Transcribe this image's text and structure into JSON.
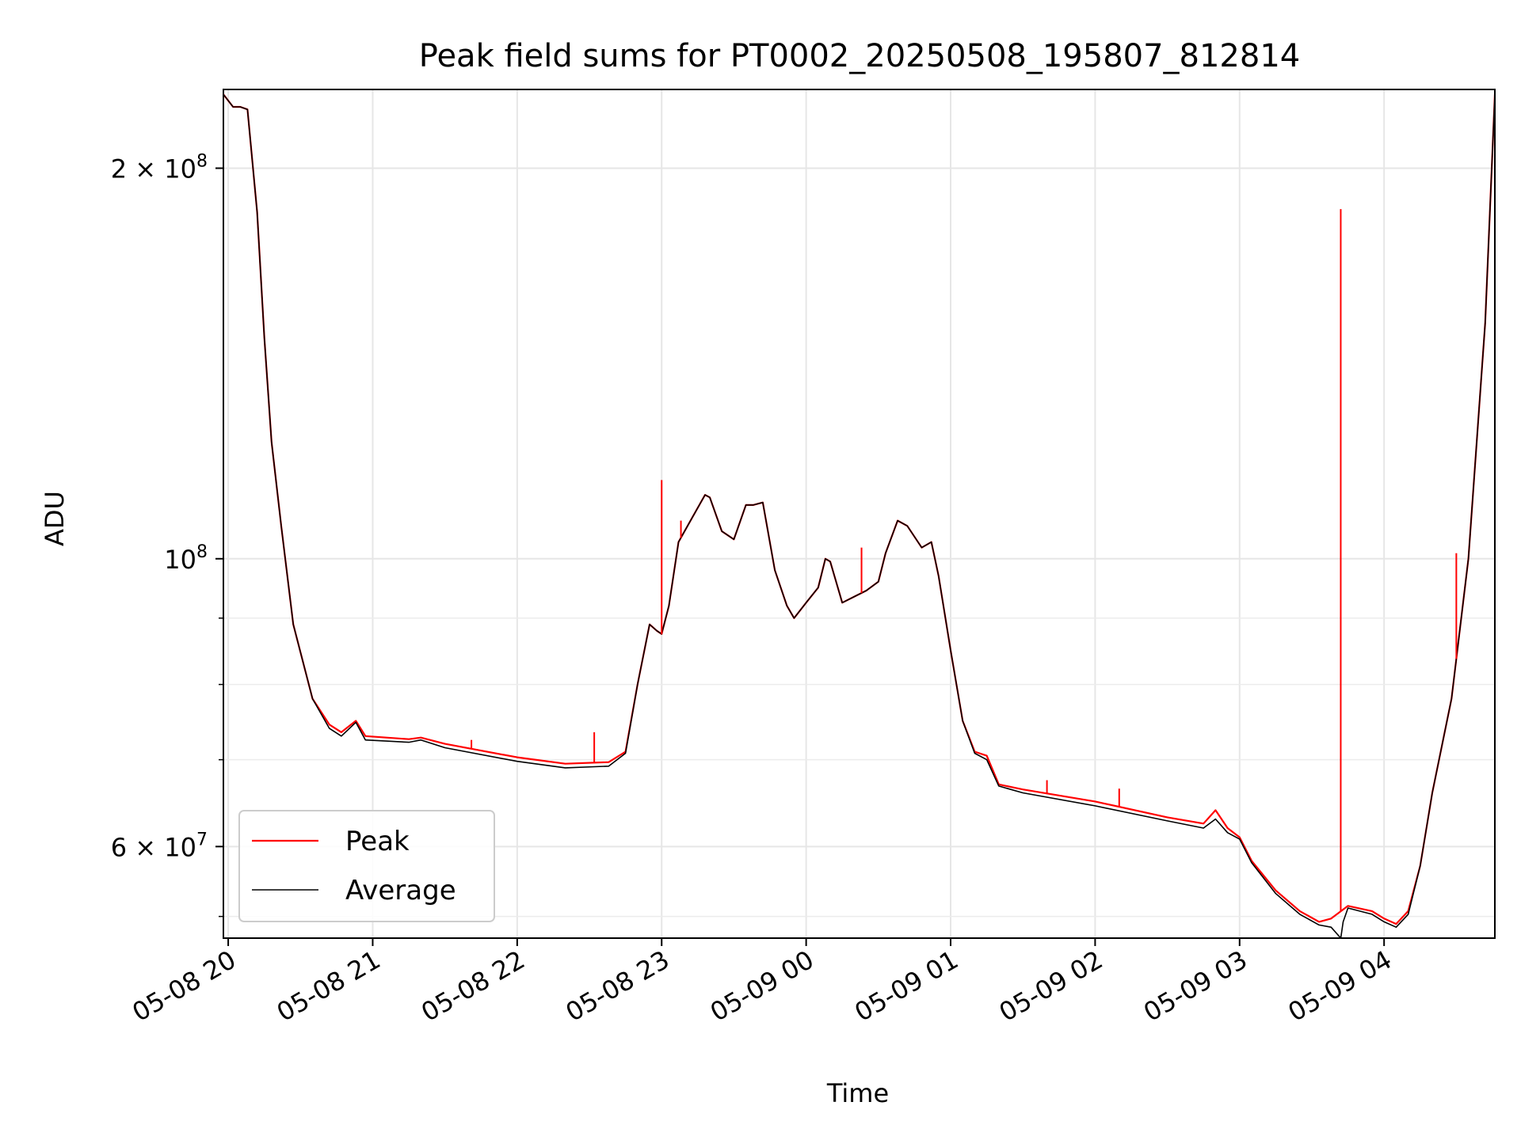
{
  "chart_data": {
    "type": "line",
    "title": "Peak field sums for PT0002_20250508_195807_812814",
    "xlabel": "Time",
    "ylabel": "ADU",
    "y_scale": "log",
    "xlim": [
      "2025-05-08 19:58",
      "2025-05-09 04:46"
    ],
    "ylim": [
      51000000,
      230000000
    ],
    "grid": true,
    "legend_position": "lower-left",
    "x_ticks": [
      {
        "t": "2025-05-08 20:00",
        "label": "05-08 20"
      },
      {
        "t": "2025-05-08 21:00",
        "label": "05-08 21"
      },
      {
        "t": "2025-05-08 22:00",
        "label": "05-08 22"
      },
      {
        "t": "2025-05-08 23:00",
        "label": "05-08 23"
      },
      {
        "t": "2025-05-09 00:00",
        "label": "05-09 00"
      },
      {
        "t": "2025-05-09 01:00",
        "label": "05-09 01"
      },
      {
        "t": "2025-05-09 02:00",
        "label": "05-09 02"
      },
      {
        "t": "2025-05-09 03:00",
        "label": "05-09 03"
      },
      {
        "t": "2025-05-09 04:00",
        "label": "05-09 04"
      }
    ],
    "y_major_ticks": [
      {
        "v": 200000000,
        "mant": "2",
        "exp": "8"
      },
      {
        "v": 100000000,
        "mant": "",
        "exp": "8"
      },
      {
        "v": 60000000,
        "mant": "6",
        "exp": "7"
      }
    ],
    "y_minor_ticks": [
      53000000,
      70000000,
      80000000,
      90000000
    ],
    "series": [
      {
        "name": "Peak",
        "color": "#ff0000",
        "points": [
          [
            "2025-05-08 19:58",
            228000000
          ],
          [
            "2025-05-08 20:02",
            223000000
          ],
          [
            "2025-05-08 20:05",
            223000000
          ],
          [
            "2025-05-08 20:08",
            222000000
          ],
          [
            "2025-05-08 20:12",
            185000000
          ],
          [
            "2025-05-08 20:15",
            148000000
          ],
          [
            "2025-05-08 20:18",
            123000000
          ],
          [
            "2025-05-08 20:22",
            106000000
          ],
          [
            "2025-05-08 20:27",
            89000000
          ],
          [
            "2025-05-08 20:35",
            78000000
          ],
          [
            "2025-05-08 20:42",
            74500000
          ],
          [
            "2025-05-08 20:47",
            73500000
          ],
          [
            "2025-05-08 20:53",
            75000000
          ],
          [
            "2025-05-08 20:57",
            73000000
          ],
          [
            "2025-05-08 21:15",
            72600000
          ],
          [
            "2025-05-08 21:20",
            72800000
          ],
          [
            "2025-05-08 21:30",
            72000000
          ],
          [
            "2025-05-08 22:00",
            70300000
          ],
          [
            "2025-05-08 22:20",
            69500000
          ],
          [
            "2025-05-08 22:38",
            69700000
          ],
          [
            "2025-05-08 22:45",
            71000000
          ],
          [
            "2025-05-08 22:50",
            80000000
          ],
          [
            "2025-05-08 22:55",
            89000000
          ],
          [
            "2025-05-08 22:58",
            88000000
          ],
          [
            "2025-05-08 23:00",
            87500000
          ],
          [
            "2025-05-08 23:03",
            92000000
          ],
          [
            "2025-05-08 23:07",
            103000000
          ],
          [
            "2025-05-08 23:12",
            107000000
          ],
          [
            "2025-05-08 23:18",
            112000000
          ],
          [
            "2025-05-08 23:20",
            111500000
          ],
          [
            "2025-05-08 23:25",
            105000000
          ],
          [
            "2025-05-08 23:30",
            103500000
          ],
          [
            "2025-05-08 23:35",
            110000000
          ],
          [
            "2025-05-08 23:38",
            110000000
          ],
          [
            "2025-05-08 23:42",
            110500000
          ],
          [
            "2025-05-08 23:47",
            98000000
          ],
          [
            "2025-05-08 23:52",
            92000000
          ],
          [
            "2025-05-08 23:55",
            90000000
          ],
          [
            "2025-05-09 00:00",
            92500000
          ],
          [
            "2025-05-09 00:05",
            95000000
          ],
          [
            "2025-05-09 00:08",
            100000000
          ],
          [
            "2025-05-09 00:10",
            99500000
          ],
          [
            "2025-05-09 00:15",
            92500000
          ],
          [
            "2025-05-09 00:20",
            93500000
          ],
          [
            "2025-05-09 00:25",
            94500000
          ],
          [
            "2025-05-09 00:30",
            96000000
          ],
          [
            "2025-05-09 00:33",
            101000000
          ],
          [
            "2025-05-09 00:38",
            107000000
          ],
          [
            "2025-05-09 00:42",
            106000000
          ],
          [
            "2025-05-09 00:48",
            102000000
          ],
          [
            "2025-05-09 00:52",
            103000000
          ],
          [
            "2025-05-09 00:55",
            97000000
          ],
          [
            "2025-05-09 01:00",
            85000000
          ],
          [
            "2025-05-09 01:05",
            75000000
          ],
          [
            "2025-05-09 01:10",
            71000000
          ],
          [
            "2025-05-09 01:15",
            70500000
          ],
          [
            "2025-05-09 01:20",
            67000000
          ],
          [
            "2025-05-09 01:30",
            66400000
          ],
          [
            "2025-05-09 02:00",
            65000000
          ],
          [
            "2025-05-09 02:30",
            63200000
          ],
          [
            "2025-05-09 02:45",
            62500000
          ],
          [
            "2025-05-09 02:50",
            64000000
          ],
          [
            "2025-05-09 02:55",
            62000000
          ],
          [
            "2025-05-09 03:00",
            61000000
          ],
          [
            "2025-05-09 03:05",
            58500000
          ],
          [
            "2025-05-09 03:15",
            55500000
          ],
          [
            "2025-05-09 03:25",
            53500000
          ],
          [
            "2025-05-09 03:33",
            52500000
          ],
          [
            "2025-05-09 03:38",
            52800000
          ],
          [
            "2025-05-09 03:45",
            54000000
          ],
          [
            "2025-05-09 03:55",
            53500000
          ],
          [
            "2025-05-09 04:00",
            52800000
          ],
          [
            "2025-05-09 04:05",
            52300000
          ],
          [
            "2025-05-09 04:10",
            53500000
          ],
          [
            "2025-05-09 04:15",
            58000000
          ],
          [
            "2025-05-09 04:20",
            66000000
          ],
          [
            "2025-05-09 04:28",
            78000000
          ],
          [
            "2025-05-09 04:35",
            100000000
          ],
          [
            "2025-05-09 04:42",
            152000000
          ],
          [
            "2025-05-09 04:46",
            228000000
          ]
        ],
        "spikes": [
          [
            "2025-05-08 22:32",
            73500000
          ],
          [
            "2025-05-08 23:00",
            115000000
          ],
          [
            "2025-05-08 23:08",
            107000000
          ],
          [
            "2025-05-09 00:23",
            102000000
          ],
          [
            "2025-05-09 03:42",
            186000000
          ],
          [
            "2025-05-08 21:41",
            72500000
          ],
          [
            "2025-05-09 01:40",
            67500000
          ],
          [
            "2025-05-09 02:10",
            66500000
          ],
          [
            "2025-05-09 04:30",
            101000000
          ]
        ]
      },
      {
        "name": "Average",
        "color": "#000000",
        "points": [
          [
            "2025-05-08 19:58",
            228000000
          ],
          [
            "2025-05-08 20:02",
            223000000
          ],
          [
            "2025-05-08 20:05",
            223000000
          ],
          [
            "2025-05-08 20:08",
            222000000
          ],
          [
            "2025-05-08 20:12",
            185000000
          ],
          [
            "2025-05-08 20:15",
            148000000
          ],
          [
            "2025-05-08 20:18",
            123000000
          ],
          [
            "2025-05-08 20:22",
            106000000
          ],
          [
            "2025-05-08 20:27",
            89000000
          ],
          [
            "2025-05-08 20:35",
            78000000
          ],
          [
            "2025-05-08 20:42",
            74000000
          ],
          [
            "2025-05-08 20:47",
            73000000
          ],
          [
            "2025-05-08 20:53",
            74800000
          ],
          [
            "2025-05-08 20:57",
            72500000
          ],
          [
            "2025-05-08 21:15",
            72200000
          ],
          [
            "2025-05-08 21:20",
            72500000
          ],
          [
            "2025-05-08 21:30",
            71500000
          ],
          [
            "2025-05-08 22:00",
            69800000
          ],
          [
            "2025-05-08 22:20",
            69000000
          ],
          [
            "2025-05-08 22:38",
            69200000
          ],
          [
            "2025-05-08 22:45",
            70800000
          ],
          [
            "2025-05-08 22:50",
            80000000
          ],
          [
            "2025-05-08 22:55",
            89000000
          ],
          [
            "2025-05-08 22:58",
            88000000
          ],
          [
            "2025-05-08 23:00",
            87500000
          ],
          [
            "2025-05-08 23:03",
            92000000
          ],
          [
            "2025-05-08 23:07",
            103000000
          ],
          [
            "2025-05-08 23:12",
            107000000
          ],
          [
            "2025-05-08 23:18",
            112000000
          ],
          [
            "2025-05-08 23:20",
            111500000
          ],
          [
            "2025-05-08 23:25",
            105000000
          ],
          [
            "2025-05-08 23:30",
            103500000
          ],
          [
            "2025-05-08 23:35",
            110000000
          ],
          [
            "2025-05-08 23:38",
            110000000
          ],
          [
            "2025-05-08 23:42",
            110500000
          ],
          [
            "2025-05-08 23:47",
            98000000
          ],
          [
            "2025-05-08 23:52",
            92000000
          ],
          [
            "2025-05-08 23:55",
            90000000
          ],
          [
            "2025-05-09 00:00",
            92500000
          ],
          [
            "2025-05-09 00:05",
            95000000
          ],
          [
            "2025-05-09 00:08",
            100000000
          ],
          [
            "2025-05-09 00:10",
            99500000
          ],
          [
            "2025-05-09 00:15",
            92500000
          ],
          [
            "2025-05-09 00:20",
            93500000
          ],
          [
            "2025-05-09 00:25",
            94500000
          ],
          [
            "2025-05-09 00:30",
            96000000
          ],
          [
            "2025-05-09 00:33",
            101000000
          ],
          [
            "2025-05-09 00:38",
            107000000
          ],
          [
            "2025-05-09 00:42",
            106000000
          ],
          [
            "2025-05-09 00:48",
            102000000
          ],
          [
            "2025-05-09 00:52",
            103000000
          ],
          [
            "2025-05-09 00:55",
            97000000
          ],
          [
            "2025-05-09 01:00",
            85000000
          ],
          [
            "2025-05-09 01:05",
            75000000
          ],
          [
            "2025-05-09 01:10",
            70800000
          ],
          [
            "2025-05-09 01:15",
            70000000
          ],
          [
            "2025-05-09 01:20",
            66800000
          ],
          [
            "2025-05-09 01:30",
            66000000
          ],
          [
            "2025-05-09 02:00",
            64500000
          ],
          [
            "2025-05-09 02:30",
            62800000
          ],
          [
            "2025-05-09 02:45",
            62000000
          ],
          [
            "2025-05-09 02:50",
            63000000
          ],
          [
            "2025-05-09 02:55",
            61500000
          ],
          [
            "2025-05-09 03:00",
            60800000
          ],
          [
            "2025-05-09 03:05",
            58300000
          ],
          [
            "2025-05-09 03:15",
            55200000
          ],
          [
            "2025-05-09 03:25",
            53200000
          ],
          [
            "2025-05-09 03:33",
            52200000
          ],
          [
            "2025-05-09 03:38",
            52000000
          ],
          [
            "2025-05-09 03:42",
            51000000
          ],
          [
            "2025-05-09 03:43",
            52500000
          ],
          [
            "2025-05-09 03:45",
            53800000
          ],
          [
            "2025-05-09 03:55",
            53200000
          ],
          [
            "2025-05-09 04:00",
            52500000
          ],
          [
            "2025-05-09 04:05",
            52000000
          ],
          [
            "2025-05-09 04:10",
            53200000
          ],
          [
            "2025-05-09 04:15",
            58000000
          ],
          [
            "2025-05-09 04:20",
            66000000
          ],
          [
            "2025-05-09 04:28",
            78000000
          ],
          [
            "2025-05-09 04:35",
            100000000
          ],
          [
            "2025-05-09 04:42",
            152000000
          ],
          [
            "2025-05-09 04:46",
            228000000
          ]
        ]
      }
    ]
  }
}
